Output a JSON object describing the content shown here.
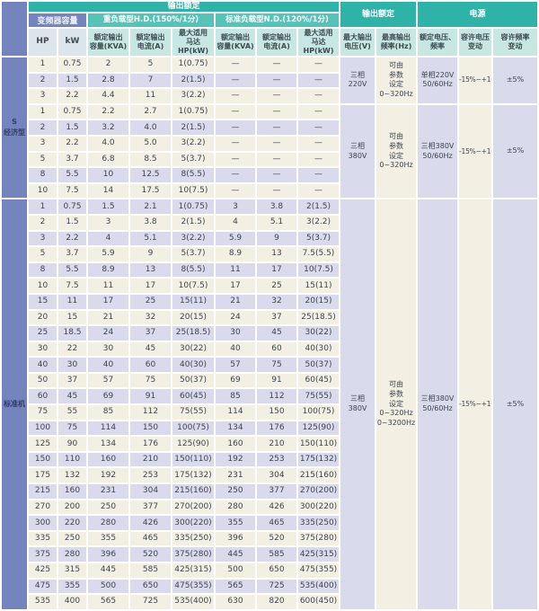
{
  "header": {
    "top": {
      "output_rating": "输出额定",
      "output_rating2": "输出额定",
      "power": "电源",
      "inverter_capacity": "变频器容量",
      "hd": "重负载型H.D.(150%/1分)",
      "nd": "标准负载型N.D.(120%/1分)"
    },
    "cols": [
      "HP",
      "kW",
      "额定输出\n容量(KVA)",
      "额定输出\n电流(A)",
      "最大适用\n马达HP(kW)",
      "额定输出\n容量(KVA)",
      "额定输出\n电流(A)",
      "最大适用\n马达HP(kW)",
      "最大输出\n电压(V)",
      "最高输出\n频率(Hz)",
      "额定电压、\n频率",
      "容许电压\n变动",
      "容许频率\n变动"
    ]
  },
  "sections": [
    {
      "label": "S\n经济型",
      "groups": [
        {
          "voltage": "三相\n220V",
          "freq": "可由\n参数\n设定\n0~320Hz",
          "rated_vf": "单相220V\n50/60Hz",
          "v_var": "-15%~+10%",
          "f_var": "±5%",
          "rows": [
            [
              "1",
              "0.75",
              "2",
              "5",
              "1(0.75)",
              "—",
              "—",
              "—"
            ],
            [
              "2",
              "1.5",
              "2.8",
              "7",
              "2(1.5)",
              "—",
              "—",
              "—"
            ],
            [
              "3",
              "2.2",
              "4.4",
              "11",
              "3(2.2)",
              "—",
              "—",
              "—"
            ]
          ]
        },
        {
          "voltage": "三相\n380V",
          "freq": "可由\n参数\n设定\n0~320Hz",
          "rated_vf": "三相380V\n50/60Hz",
          "v_var": "-15%~+10%",
          "f_var": "±5%",
          "rows": [
            [
              "1",
              "0.75",
              "2.2",
              "2.7",
              "1(0.75)",
              "—",
              "—",
              "—"
            ],
            [
              "2",
              "1.5",
              "3.2",
              "4.0",
              "2(1.5)",
              "—",
              "—",
              "—"
            ],
            [
              "3",
              "2.2",
              "4.0",
              "5.0",
              "3(2.2)",
              "—",
              "—",
              "—"
            ],
            [
              "5",
              "3.7",
              "6.8",
              "8.5",
              "5(3.7)",
              "—",
              "—",
              "—"
            ],
            [
              "8",
              "5.5",
              "10",
              "12.5",
              "8(5.5)",
              "—",
              "—",
              "—"
            ],
            [
              "10",
              "7.5",
              "14",
              "17.5",
              "10(7.5)",
              "—",
              "—",
              "—"
            ]
          ]
        }
      ]
    },
    {
      "label": "标准机",
      "groups": [
        {
          "voltage": "三相\n380V",
          "freq": "可由\n参数\n设定\n0~320Hz\n0~3200Hz",
          "rated_vf": "三相380V\n50/60Hz",
          "v_var": "-15%~+10%",
          "f_var": "±5%",
          "rows": [
            [
              "1",
              "0.75",
              "1.5",
              "2.1",
              "1(0.75)",
              "3",
              "3.8",
              "2(1.5)"
            ],
            [
              "2",
              "1.5",
              "3",
              "3.8",
              "2(1.5)",
              "4",
              "5.1",
              "3(2.2)"
            ],
            [
              "3",
              "2.2",
              "4",
              "5.1",
              "3(2.2)",
              "5.9",
              "9",
              "5(3.7)"
            ],
            [
              "5",
              "3.7",
              "5.9",
              "9",
              "5(3.7)",
              "8.9",
              "13",
              "7.5(5.5)"
            ],
            [
              "8",
              "5.5",
              "8.9",
              "13",
              "8(5.5)",
              "11",
              "17",
              "10(7.5)"
            ],
            [
              "10",
              "7.5",
              "11",
              "17",
              "10(7.5)",
              "17",
              "25",
              "15(11)"
            ],
            [
              "15",
              "11",
              "17",
              "25",
              "15(11)",
              "21",
              "32",
              "20(15)"
            ],
            [
              "20",
              "15",
              "21",
              "32",
              "20(15)",
              "24",
              "37",
              "25(18.5)"
            ],
            [
              "25",
              "18.5",
              "24",
              "37",
              "25(18.5)",
              "30",
              "45",
              "30(22)"
            ],
            [
              "30",
              "22",
              "30",
              "45",
              "30(22)",
              "40",
              "60",
              "40(30)"
            ],
            [
              "40",
              "30",
              "40",
              "60",
              "40(30)",
              "57",
              "75",
              "50(37)"
            ],
            [
              "50",
              "37",
              "57",
              "75",
              "50(37)",
              "69",
              "91",
              "60(45)"
            ],
            [
              "60",
              "45",
              "69",
              "91",
              "60(45)",
              "85",
              "112",
              "75(55)"
            ],
            [
              "75",
              "55",
              "85",
              "112",
              "75(55)",
              "114",
              "150",
              "100(75)"
            ],
            [
              "100",
              "75",
              "114",
              "150",
              "100(75)",
              "134",
              "176",
              "125(90)"
            ],
            [
              "125",
              "90",
              "134",
              "176",
              "125(90)",
              "160",
              "210",
              "150(110)"
            ],
            [
              "150",
              "110",
              "160",
              "210",
              "150(110)",
              "192",
              "253",
              "175(132)"
            ],
            [
              "175",
              "132",
              "192",
              "253",
              "175(132)",
              "231",
              "304",
              "215(160)"
            ],
            [
              "215",
              "160",
              "231",
              "304",
              "215(160)",
              "250",
              "377",
              "270(200)"
            ],
            [
              "270",
              "200",
              "250",
              "377",
              "270(200)",
              "280",
              "426",
              "300(220)"
            ],
            [
              "300",
              "220",
              "280",
              "426",
              "300(220)",
              "355",
              "465",
              "335(250)"
            ],
            [
              "335",
              "250",
              "355",
              "465",
              "335(250)",
              "396",
              "520",
              "375(280)"
            ],
            [
              "375",
              "280",
              "396",
              "520",
              "375(280)",
              "445",
              "585",
              "425(315)"
            ],
            [
              "425",
              "315",
              "445",
              "585",
              "425(315)",
              "500",
              "650",
              "475(355)"
            ],
            [
              "475",
              "355",
              "500",
              "650",
              "475(355)",
              "565",
              "725",
              "535(400)"
            ],
            [
              "535",
              "400",
              "565",
              "725",
              "535(400)",
              "630",
              "820",
              "600(450)"
            ]
          ]
        }
      ]
    }
  ],
  "colors": {
    "slate_blue": "#7484bd",
    "teal_band": "#2fb2a8",
    "teal_band_light": "#57c3b8",
    "header_cell_teal": "#c7e8e2",
    "header_cell_grey": "#dce4ec",
    "row_cream": "#f3f0e3",
    "row_lavender": "#d9daec"
  }
}
